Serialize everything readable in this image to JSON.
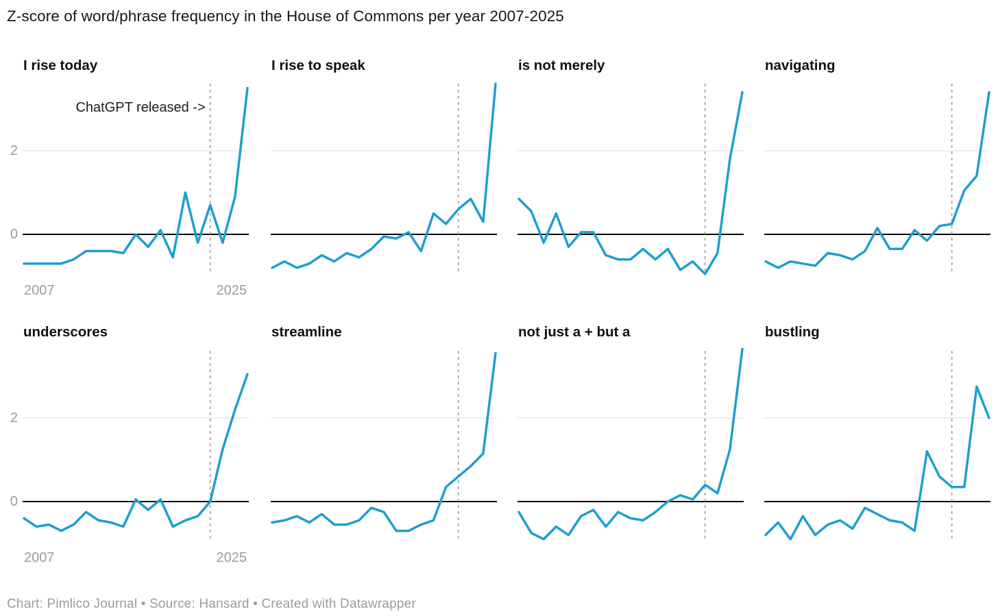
{
  "page": {
    "title": "Z-score of word/phrase frequency in the House of Commons per year 2007-2025",
    "footer": "Chart: Pimlico Journal • Source: Hansard • Created with Datawrapper"
  },
  "colors": {
    "line": "#1d9fce",
    "zero_line": "#000000",
    "gridline": "#e3e3e3",
    "event_line": "#9a9a9a",
    "tick_label": "#9b9b9b",
    "panel_title": "#101010",
    "annotation": "#1c1c1c"
  },
  "chart_data": {
    "type": "line",
    "title": "Z-score of word/phrase frequency in the House of Commons per year 2007-2025",
    "x": [
      2007,
      2008,
      2009,
      2010,
      2011,
      2012,
      2013,
      2014,
      2015,
      2016,
      2017,
      2018,
      2019,
      2020,
      2021,
      2022,
      2023,
      2024,
      2025
    ],
    "x_axis_tick_labels": [
      "2007",
      "2025"
    ],
    "y_axis_tick_labels": [
      "2",
      "0"
    ],
    "y_axis_ticks": [
      2,
      0
    ],
    "ylim": [
      -1.0,
      3.7
    ],
    "grid": "horizontal-at-2-only",
    "event_line": {
      "year": 2022,
      "style": "dashed",
      "label": "ChatGPT released ->",
      "label_panel": "I rise today"
    },
    "series": [
      {
        "name": "I rise today",
        "values": [
          -0.7,
          -0.7,
          -0.7,
          -0.7,
          -0.6,
          -0.4,
          -0.4,
          -0.4,
          -0.45,
          0.0,
          -0.3,
          0.1,
          -0.55,
          1.0,
          -0.2,
          0.7,
          -0.2,
          0.9,
          3.5
        ]
      },
      {
        "name": "I rise to speak",
        "values": [
          -0.8,
          -0.65,
          -0.8,
          -0.7,
          -0.5,
          -0.65,
          -0.45,
          -0.55,
          -0.35,
          -0.05,
          -0.1,
          0.05,
          -0.4,
          0.5,
          0.25,
          0.6,
          0.85,
          0.3,
          3.6
        ]
      },
      {
        "name": "is not merely",
        "values": [
          0.85,
          0.55,
          -0.2,
          0.5,
          -0.3,
          0.05,
          0.05,
          -0.5,
          -0.6,
          -0.6,
          -0.35,
          -0.6,
          -0.35,
          -0.85,
          -0.65,
          -0.95,
          -0.45,
          1.8,
          3.4
        ]
      },
      {
        "name": "navigating",
        "values": [
          -0.65,
          -0.8,
          -0.65,
          -0.7,
          -0.75,
          -0.45,
          -0.5,
          -0.6,
          -0.4,
          0.15,
          -0.35,
          -0.35,
          0.1,
          -0.15,
          0.2,
          0.25,
          1.05,
          1.4,
          3.4
        ]
      },
      {
        "name": "underscores",
        "values": [
          -0.4,
          -0.6,
          -0.55,
          -0.7,
          -0.55,
          -0.25,
          -0.45,
          -0.5,
          -0.6,
          0.05,
          -0.2,
          0.05,
          -0.6,
          -0.45,
          -0.35,
          0.0,
          1.25,
          2.2,
          3.05
        ]
      },
      {
        "name": "streamline",
        "values": [
          -0.5,
          -0.45,
          -0.35,
          -0.5,
          -0.3,
          -0.55,
          -0.55,
          -0.45,
          -0.15,
          -0.25,
          -0.7,
          -0.7,
          -0.55,
          -0.45,
          0.35,
          0.6,
          0.85,
          1.15,
          3.55
        ]
      },
      {
        "name": "not just a + but a",
        "values": [
          -0.25,
          -0.75,
          -0.9,
          -0.6,
          -0.8,
          -0.35,
          -0.2,
          -0.6,
          -0.25,
          -0.4,
          -0.45,
          -0.25,
          0.0,
          0.15,
          0.05,
          0.4,
          0.2,
          1.25,
          3.65
        ]
      },
      {
        "name": "bustling",
        "values": [
          -0.8,
          -0.5,
          -0.9,
          -0.35,
          -0.8,
          -0.55,
          -0.45,
          -0.65,
          -0.15,
          -0.3,
          -0.45,
          -0.5,
          -0.7,
          1.2,
          0.6,
          0.35,
          0.35,
          2.75,
          2.0
        ]
      }
    ]
  }
}
